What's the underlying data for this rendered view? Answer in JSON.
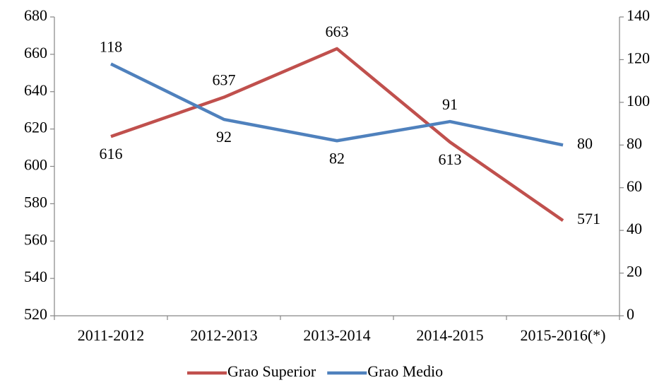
{
  "chart_data": {
    "type": "line",
    "categories": [
      "2011-2012",
      "2012-2013",
      "2013-2014",
      "2014-2015",
      "2015-2016(*)"
    ],
    "series": [
      {
        "name": "Grao Superior",
        "color": "#c0504d",
        "values": [
          616,
          637,
          663,
          613,
          571
        ]
      },
      {
        "name": "Grao Medio",
        "color": "#4f81bd",
        "values": [
          118,
          92,
          82,
          91,
          80
        ],
        "axis": "y2"
      }
    ],
    "ylim": [
      520,
      680
    ],
    "yticks": [
      520,
      540,
      560,
      580,
      600,
      620,
      640,
      660,
      680
    ],
    "y2lim": [
      0,
      140
    ],
    "y2ticks": [
      0,
      20,
      40,
      60,
      80,
      100,
      120,
      140
    ],
    "legend": "bottom"
  }
}
